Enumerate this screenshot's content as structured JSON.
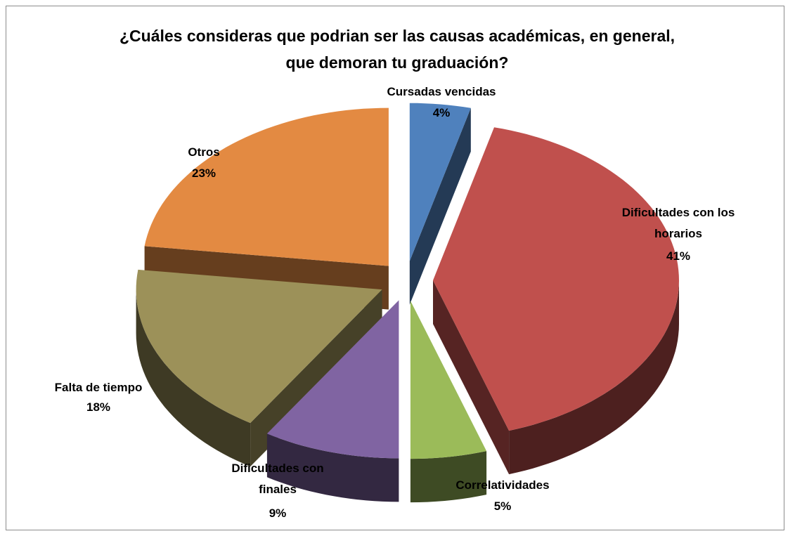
{
  "chart_data": {
    "type": "pie3d",
    "title": "¿Cuáles consideras que podrian ser las causas académicas,  en general, que demoran tu graduación?",
    "categories": [
      "Cursadas vencidas",
      "Dificultades con los horarios",
      "Correlatividades",
      "Dificultades con finales",
      "Falta de tiempo",
      "Otros"
    ],
    "values": [
      4,
      41,
      5,
      9,
      18,
      23
    ],
    "value_labels": [
      "4%",
      "41%",
      "5%",
      "9%",
      "18%",
      "23%"
    ],
    "colors": [
      "#4f81bd",
      "#c0504d",
      "#9bbb59",
      "#8064a2",
      "#9c9159",
      "#e38a42"
    ]
  }
}
